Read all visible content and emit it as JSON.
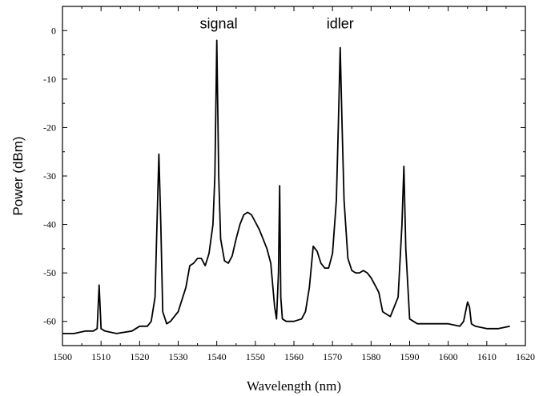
{
  "chart_data": {
    "type": "line",
    "xlabel": "Wavelength (nm)",
    "ylabel": "Power (dBm)",
    "xlim": [
      1500,
      1620
    ],
    "ylim": [
      -65,
      5
    ],
    "x_ticks": [
      1500,
      1510,
      1520,
      1530,
      1540,
      1550,
      1560,
      1570,
      1580,
      1590,
      1600,
      1610,
      1620
    ],
    "y_ticks": [
      0,
      -10,
      -20,
      -30,
      -40,
      -50,
      -60
    ],
    "grid": false,
    "legend": "none",
    "annotations": [
      {
        "text": "signal",
        "x": 1540.5,
        "y": 0.5
      },
      {
        "text": "idler",
        "x": 1572,
        "y": 0.5
      }
    ],
    "series": [
      {
        "color": "#000000",
        "x": [
          1500,
          1503,
          1506,
          1508,
          1509,
          1509.5,
          1510,
          1511,
          1514,
          1518,
          1520,
          1522,
          1523,
          1524,
          1524.5,
          1525,
          1525.5,
          1526,
          1527,
          1528,
          1530,
          1532,
          1533,
          1534,
          1535,
          1536,
          1537,
          1538,
          1539,
          1539.5,
          1540,
          1540.5,
          1541,
          1542,
          1543,
          1544,
          1545,
          1546,
          1547,
          1548,
          1549,
          1550,
          1551,
          1552,
          1553,
          1554,
          1555,
          1555.5,
          1556,
          1556.3,
          1556.6,
          1557,
          1558,
          1560,
          1562,
          1563,
          1564,
          1565,
          1566,
          1567,
          1568,
          1569,
          1570,
          1571,
          1571.5,
          1572,
          1572.5,
          1573,
          1574,
          1575,
          1576,
          1577,
          1578,
          1579,
          1580,
          1581,
          1582,
          1583,
          1585,
          1587,
          1588,
          1588.5,
          1589,
          1590,
          1592,
          1596,
          1600,
          1603,
          1604,
          1605,
          1605.5,
          1606,
          1607,
          1610,
          1613,
          1616
        ],
        "y": [
          -62.5,
          -62.5,
          -62,
          -62,
          -61.5,
          -52.5,
          -61.5,
          -62,
          -62.5,
          -62,
          -61,
          -61,
          -60,
          -55,
          -40,
          -25.5,
          -40,
          -58,
          -60.5,
          -60,
          -58,
          -53,
          -48.5,
          -48,
          -47,
          -47,
          -48.5,
          -46,
          -40,
          -30,
          -2,
          -30,
          -43,
          -47.5,
          -48,
          -46.5,
          -43,
          -40,
          -38,
          -37.5,
          -38,
          -39.5,
          -41,
          -43,
          -45,
          -48,
          -57,
          -59.5,
          -50,
          -32,
          -55,
          -59.5,
          -60,
          -60,
          -59.5,
          -58,
          -53,
          -44.5,
          -45.5,
          -48,
          -49,
          -49,
          -46,
          -35,
          -20,
          -3.5,
          -20,
          -35,
          -47,
          -49.5,
          -50,
          -50,
          -49.5,
          -50,
          -51,
          -52.5,
          -54,
          -58,
          -59,
          -55,
          -40,
          -28,
          -45,
          -59.5,
          -60.5,
          -60.5,
          -60.5,
          -61,
          -60,
          -56,
          -57,
          -60.5,
          -61,
          -61.5,
          -61.5,
          -61
        ]
      }
    ]
  }
}
